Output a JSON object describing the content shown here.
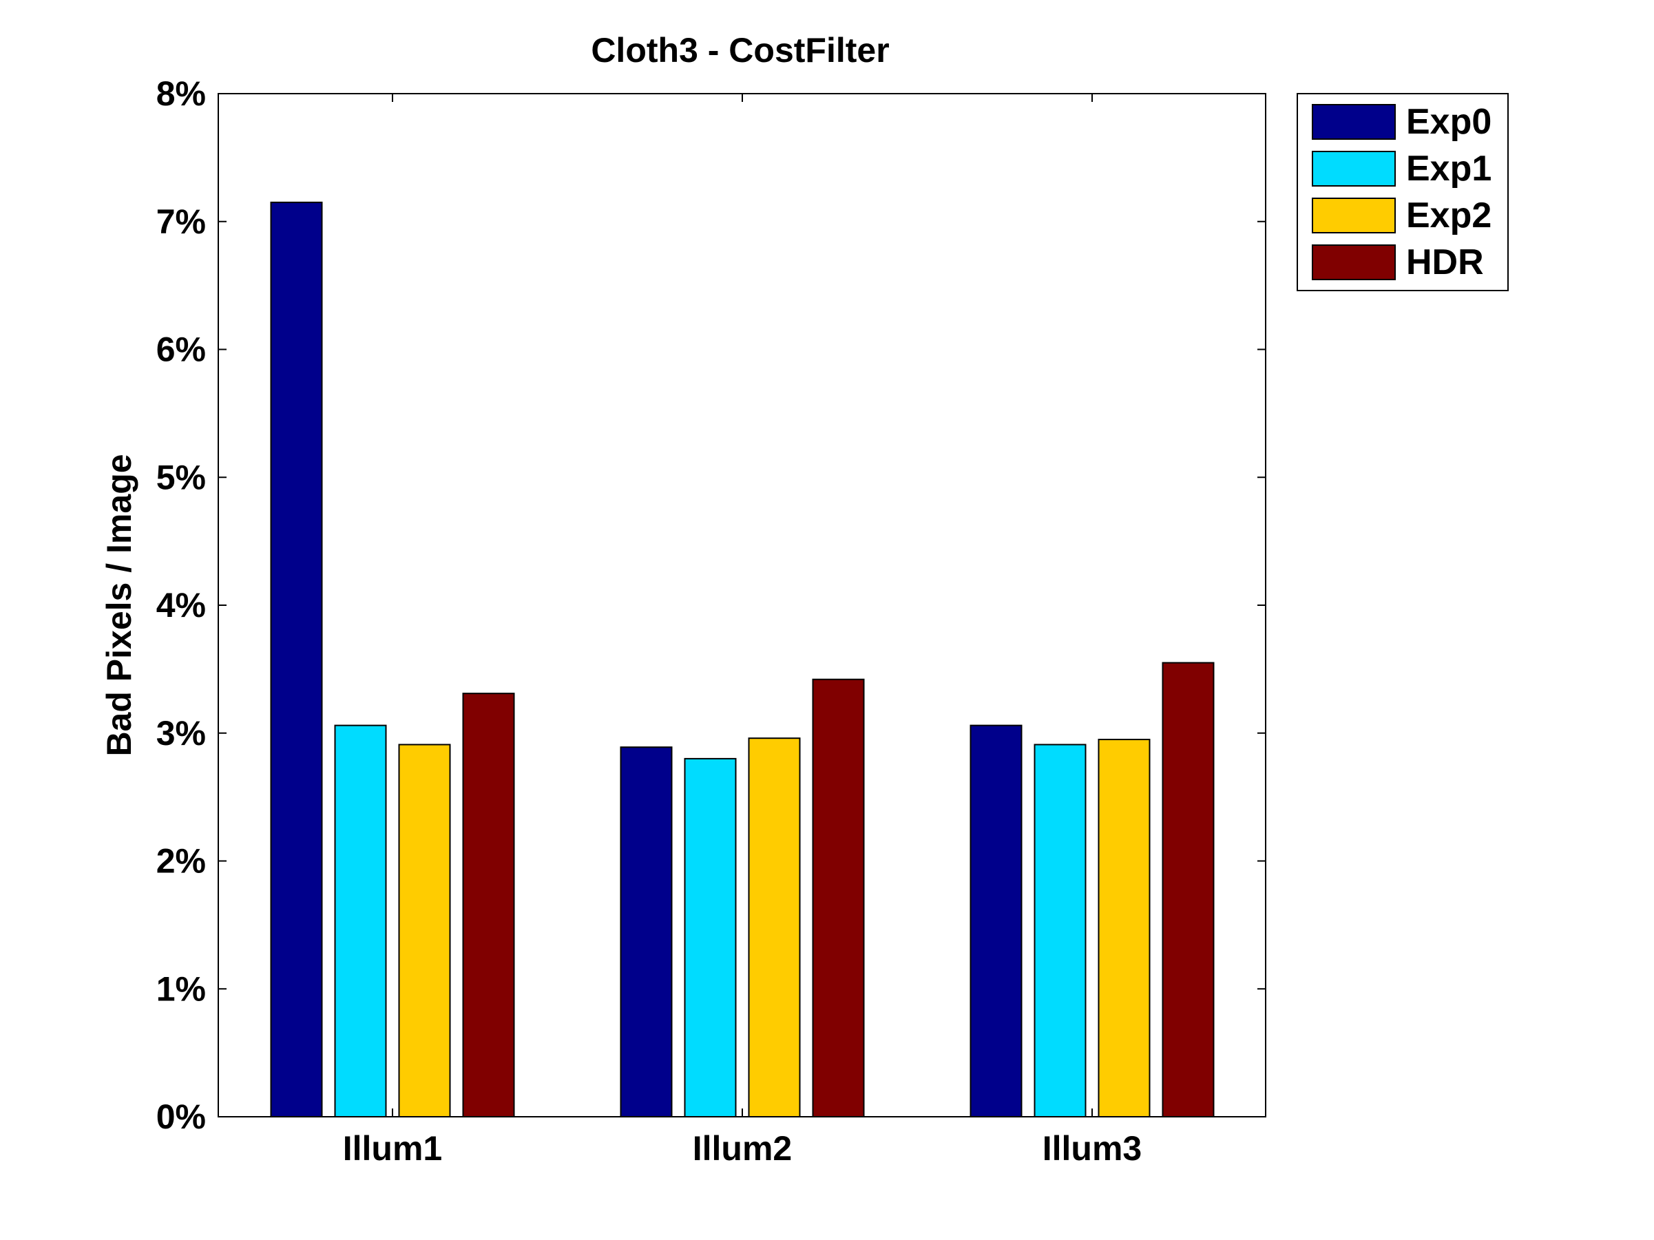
{
  "chart_data": {
    "type": "bar",
    "title": "Cloth3 - CostFilter",
    "xlabel": "",
    "ylabel": "Bad Pixels / Image",
    "categories": [
      "Illum1",
      "Illum2",
      "Illum3"
    ],
    "series": [
      {
        "name": "Exp0",
        "values": [
          7.15,
          2.89,
          3.06
        ],
        "color": "#00008b"
      },
      {
        "name": "Exp1",
        "values": [
          3.06,
          2.8,
          2.91
        ],
        "color": "#00dcff"
      },
      {
        "name": "Exp2",
        "values": [
          2.91,
          2.96,
          2.95
        ],
        "color": "#ffcc00"
      },
      {
        "name": "HDR",
        "values": [
          3.31,
          3.42,
          3.55
        ],
        "color": "#800000"
      }
    ],
    "ylim": [
      0,
      8
    ],
    "yticks": [
      0,
      1,
      2,
      3,
      4,
      5,
      6,
      7,
      8
    ],
    "ytick_labels": [
      "0%",
      "1%",
      "2%",
      "3%",
      "4%",
      "5%",
      "6%",
      "7%",
      "8%"
    ],
    "grid": false,
    "legend_position": "outside-top-right"
  }
}
